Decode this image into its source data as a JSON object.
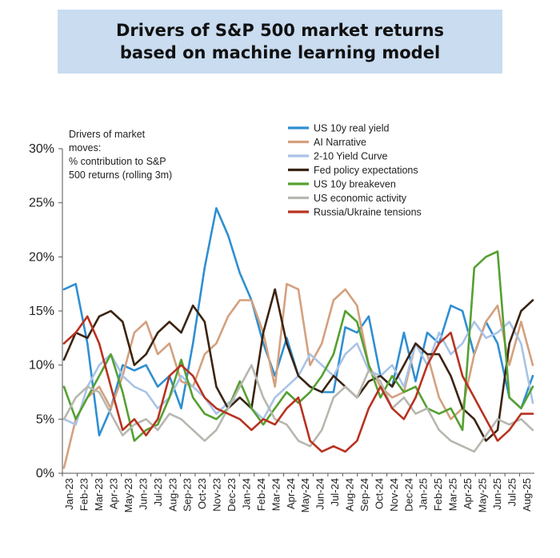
{
  "title": "Drivers of S&P 500 market returns based on machine learning model",
  "chart_data": {
    "type": "line",
    "title": "Drivers of S&P 500 market returns based on machine learning model",
    "annotation": [
      "Drivers of market",
      "moves:",
      "% contribution to S&P",
      "500 returns (rolling 3m)"
    ],
    "ylim": [
      0,
      30
    ],
    "y_ticks": [
      "0%",
      "5%",
      "10%",
      "15%",
      "20%",
      "25%",
      "30%"
    ],
    "y_tick_values": [
      0,
      5,
      10,
      15,
      20,
      25,
      30
    ],
    "x_ticks": [
      "Jan-23",
      "Feb-23",
      "Mar-23",
      "Apr-23",
      "May-23",
      "Jun-23",
      "Jul-23",
      "Aug-23",
      "Sep-23",
      "Oct-23",
      "Nov-23",
      "Dec-23",
      "Jan-24",
      "Feb-24",
      "Mar-24",
      "Apr-24",
      "May-24",
      "Jun-24",
      "Jul-24",
      "Aug-24",
      "Sep-24",
      "Oct-24",
      "Nov-24",
      "Dec-24",
      "Jan-25",
      "Feb-25",
      "Mar-25",
      "Apr-25",
      "May-25",
      "Jun-25",
      "Jul-25",
      "Aug-25"
    ],
    "legend_position": "top-right",
    "grid": false,
    "series": [
      {
        "name": "US 10y real yield",
        "color": "#2f8fd2",
        "values": [
          17,
          17.5,
          12,
          3.5,
          6,
          10,
          9.5,
          10,
          8,
          9,
          6,
          12,
          19,
          24.5,
          22,
          18.5,
          16,
          12,
          9,
          12.5,
          9,
          8,
          7.5,
          7.5,
          13.5,
          13,
          14.5,
          9,
          8,
          13,
          8.5,
          13,
          12,
          15.5,
          15,
          11,
          14,
          12,
          7,
          6,
          9
        ]
      },
      {
        "name": "AI Narrative",
        "color": "#d4a07e",
        "values": [
          0.5,
          5,
          7,
          8,
          6,
          9,
          13,
          14,
          11,
          12,
          8.5,
          8,
          11,
          12,
          14.5,
          16,
          16,
          13,
          8,
          17.5,
          17,
          10,
          12,
          16,
          17,
          15.5,
          10,
          8,
          7,
          7.5,
          12,
          11,
          7,
          5,
          6,
          11,
          14,
          15.5,
          10,
          14,
          10
        ]
      },
      {
        "name": "2-10 Yield Curve",
        "color": "#a9c3e6",
        "values": [
          5,
          4.5,
          8,
          10,
          11,
          9,
          8,
          7.5,
          6,
          7,
          9,
          8,
          7,
          5.5,
          6.5,
          7,
          6,
          5,
          7,
          8,
          9,
          11,
          10,
          9,
          11,
          12,
          9.5,
          9,
          10,
          8,
          12,
          10,
          13,
          11,
          12,
          14,
          12.5,
          13,
          14,
          12,
          6.5
        ]
      },
      {
        "name": "Fed policy expectations",
        "color": "#3b2412",
        "values": [
          10.5,
          13,
          12.5,
          14.5,
          15,
          14,
          10,
          11,
          13,
          14,
          13,
          15.5,
          14,
          8,
          6,
          7,
          6,
          13,
          17,
          12,
          9,
          8,
          7.5,
          9,
          8,
          7,
          8.5,
          9,
          8,
          10,
          12,
          11,
          11,
          9,
          6,
          5,
          3,
          4,
          12,
          15,
          16
        ]
      },
      {
        "name": "US 10y breakeven",
        "color": "#55a031",
        "values": [
          8,
          5,
          7,
          9,
          11,
          7.5,
          3,
          4,
          4.5,
          7,
          10.5,
          7,
          5.5,
          5,
          6,
          8.5,
          6,
          4.5,
          6,
          7.5,
          6.5,
          7.5,
          9,
          11,
          15,
          14,
          10,
          7,
          9,
          7.5,
          8,
          6,
          5.5,
          6,
          4,
          19,
          20,
          20.5,
          7,
          6,
          8
        ]
      },
      {
        "name": "US economic activity",
        "color": "#b7b7b0",
        "values": [
          5,
          7,
          8,
          7.5,
          5.5,
          3.5,
          4.5,
          5,
          4,
          5.5,
          5,
          4,
          3,
          4,
          6,
          8,
          10,
          7,
          5,
          4.5,
          3,
          2.5,
          4,
          7,
          8,
          7,
          9.5,
          8.5,
          6,
          7,
          5.5,
          6,
          4,
          3,
          2.5,
          2,
          3.5,
          5,
          4.5,
          5,
          4
        ]
      },
      {
        "name": "Russia/Ukraine tensions",
        "color": "#b83220",
        "values": [
          12,
          13,
          14.5,
          12,
          8,
          4,
          5,
          3.5,
          5,
          9,
          10,
          9,
          7,
          6,
          5.5,
          5,
          4,
          5,
          4.5,
          6,
          7,
          3,
          2,
          2.5,
          2,
          3,
          6,
          8,
          6,
          5,
          7,
          10,
          12,
          13,
          9,
          7,
          5,
          3,
          4,
          5.5,
          5.5
        ]
      }
    ]
  }
}
